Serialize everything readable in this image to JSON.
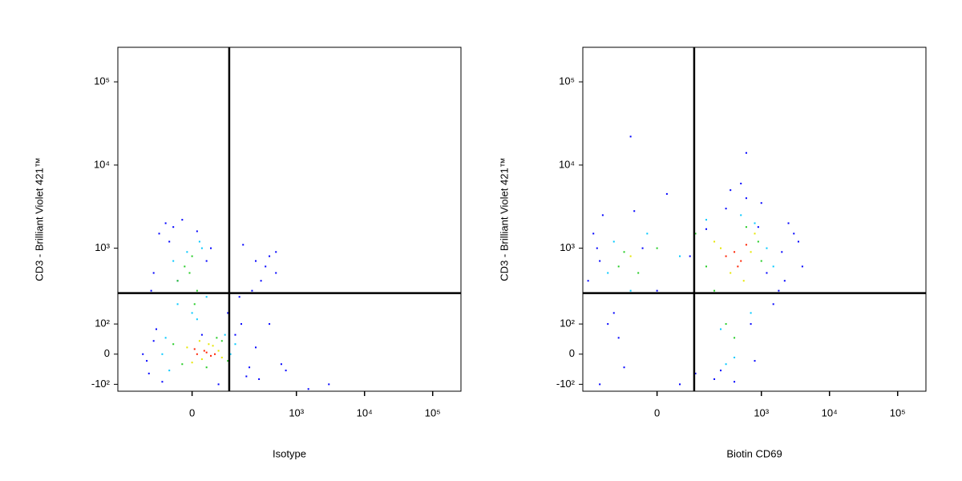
{
  "chart_data": [
    {
      "type": "scatter",
      "xlabel": "Isotype",
      "ylabel": "CD3 - Brilliant Violet 421™",
      "xscale": "biexponential",
      "yscale": "biexponential",
      "xlim": [
        -360,
        260000
      ],
      "ylim": [
        -130,
        260000
      ],
      "xticks": [
        0,
        {
          "value": 1000,
          "label": "10³"
        },
        {
          "value": 10000,
          "label": "10⁴"
        },
        {
          "value": 100000,
          "label": "10⁵"
        }
      ],
      "yticks": [
        {
          "value": -100,
          "label": "-10²"
        },
        0,
        {
          "value": 100,
          "label": "10²"
        },
        {
          "value": 1000,
          "label": "10³"
        },
        {
          "value": 10000,
          "label": "10⁴"
        },
        {
          "value": 100000,
          "label": "10⁵"
        }
      ],
      "quadrant_x": 95,
      "quadrant_y": 280,
      "series": [
        {
          "color": "#0000ff",
          "x": [
            -150,
            -120,
            -100,
            -90,
            -80,
            -60,
            -40,
            150,
            200,
            300,
            400,
            500,
            250,
            180,
            120,
            600,
            350,
            -110,
            -70,
            -20,
            10,
            40,
            -130,
            160,
            220,
            280,
            140,
            90,
            -50,
            30,
            700,
            1500,
            3000,
            500,
            400,
            250,
            -100,
            60,
            -30,
            20
          ],
          "y": [
            0,
            -60,
            40,
            80,
            1500,
            2000,
            1800,
            100,
            -40,
            400,
            800,
            500,
            20,
            -70,
            60,
            -30,
            600,
            300,
            -90,
            2200,
            1600,
            1000,
            -20,
            1100,
            300,
            -80,
            250,
            150,
            1200,
            700,
            -50,
            -120,
            -100,
            900,
            100,
            700,
            500,
            -100,
            400,
            60
          ]
        },
        {
          "color": "#00c8ff",
          "x": [
            -60,
            -50,
            100,
            120,
            -10,
            15,
            -30,
            30,
            20,
            -40,
            0,
            80,
            -70,
            10
          ],
          "y": [
            50,
            -50,
            0,
            30,
            900,
            1200,
            200,
            250,
            1000,
            700,
            150,
            60,
            0,
            120
          ]
        },
        {
          "color": "#22cc22",
          "x": [
            -40,
            -20,
            70,
            90,
            -30,
            10,
            30,
            55,
            -15,
            5,
            -5,
            0
          ],
          "y": [
            30,
            -30,
            40,
            -20,
            400,
            300,
            -40,
            50,
            600,
            200,
            500,
            800
          ]
        },
        {
          "color": "#e6e600",
          "x": [
            -10,
            20,
            60,
            35,
            0,
            45,
            15,
            70
          ],
          "y": [
            20,
            -15,
            10,
            30,
            -25,
            25,
            40,
            -10
          ]
        },
        {
          "color": "#ff2000",
          "x": [
            10,
            25,
            40,
            5,
            30,
            50
          ],
          "y": [
            0,
            10,
            -5,
            15,
            5,
            0
          ]
        }
      ]
    },
    {
      "type": "scatter",
      "xlabel": "Biotin CD69",
      "ylabel": "CD3 - Brilliant Violet 421™",
      "xscale": "biexponential",
      "yscale": "biexponential",
      "xlim": [
        -360,
        260000
      ],
      "ylim": [
        -130,
        260000
      ],
      "xticks": [
        0,
        {
          "value": 1000,
          "label": "10³"
        },
        {
          "value": 10000,
          "label": "10⁴"
        },
        {
          "value": 100000,
          "label": "10⁵"
        }
      ],
      "yticks": [
        {
          "value": -100,
          "label": "-10²"
        },
        0,
        {
          "value": 100,
          "label": "10²"
        },
        {
          "value": 1000,
          "label": "10³"
        },
        {
          "value": 10000,
          "label": "10⁴"
        },
        {
          "value": 100000,
          "label": "10⁵"
        }
      ],
      "quadrant_x": 95,
      "quadrant_y": 280,
      "series": [
        {
          "color": "#0000ff",
          "x": [
            -200,
            -250,
            -300,
            -180,
            2000,
            3000,
            4000,
            1800,
            1000,
            600,
            300,
            100,
            -80,
            -150,
            50,
            800,
            1500,
            2500,
            -50,
            200,
            400,
            700,
            -120,
            -100,
            -200,
            900,
            350,
            150,
            -30,
            20,
            250,
            1200,
            500,
            0,
            -220,
            600,
            3500,
            2200,
            -60,
            80
          ],
          "y": [
            700,
            1500,
            400,
            2500,
            900,
            1500,
            600,
            300,
            3500,
            4000,
            3000,
            -60,
            -40,
            100,
            -100,
            -20,
            200,
            2000,
            2800,
            -80,
            -90,
            100,
            150,
            50,
            -100,
            1800,
            5000,
            1700,
            1000,
            4500,
            -50,
            500,
            6000,
            300,
            1000,
            14000,
            1200,
            400,
            22000,
            800
          ]
        },
        {
          "color": "#00c8ff",
          "x": [
            50,
            -120,
            -150,
            1200,
            1500,
            800,
            300,
            700,
            500,
            -20,
            150,
            250,
            -60,
            400
          ],
          "y": [
            800,
            1200,
            500,
            1000,
            600,
            2000,
            -30,
            150,
            2500,
            1500,
            2200,
            80,
            300,
            -10
          ]
        },
        {
          "color": "#22cc22",
          "x": [
            100,
            150,
            1000,
            900,
            -80,
            -40,
            300,
            400,
            600,
            200,
            -100,
            0
          ],
          "y": [
            1500,
            600,
            700,
            1200,
            900,
            500,
            100,
            50,
            1800,
            300,
            600,
            1000
          ]
        },
        {
          "color": "#e6e600",
          "x": [
            200,
            350,
            700,
            800,
            550,
            250,
            -60
          ],
          "y": [
            1200,
            500,
            900,
            1500,
            400,
            1000,
            800
          ]
        },
        {
          "color": "#ff2000",
          "x": [
            400,
            500,
            600,
            300,
            450
          ],
          "y": [
            900,
            700,
            1100,
            800,
            600
          ]
        }
      ]
    }
  ]
}
